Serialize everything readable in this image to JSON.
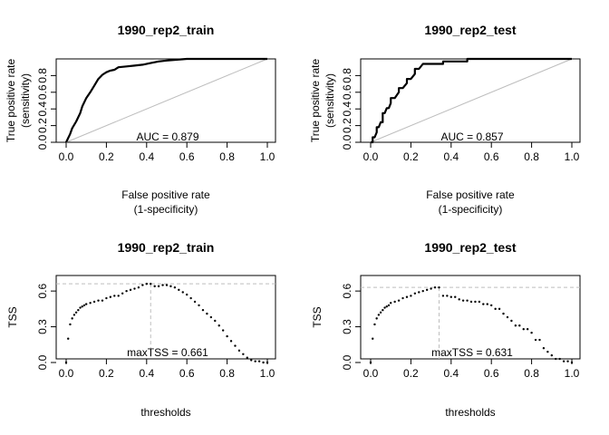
{
  "chart_data": [
    {
      "type": "line",
      "title": "1990_rep2_train",
      "xlabel": [
        "False positive rate",
        "(1-specificity)"
      ],
      "ylabel": [
        "True positive rate",
        "(sensitivity)"
      ],
      "xlim": [
        0,
        1
      ],
      "ylim": [
        0,
        1
      ],
      "x_ticks": [
        "0.0",
        "0.2",
        "0.4",
        "0.6",
        "0.8",
        "1.0"
      ],
      "y_ticks": [
        "0.0",
        "0.2",
        "0.4",
        "0.6",
        "0.8"
      ],
      "annotation": "AUC = 0.879",
      "reference_line": "diagonal",
      "series": [
        {
          "x": [
            0,
            0.01,
            0.02,
            0.03,
            0.05,
            0.07,
            0.08,
            0.1,
            0.12,
            0.14,
            0.16,
            0.18,
            0.2,
            0.22,
            0.24,
            0.26,
            0.3,
            0.34,
            0.38,
            0.42,
            0.46,
            0.5,
            0.55,
            0.6,
            0.7,
            0.8,
            0.9,
            1.0
          ],
          "y": [
            0,
            0.05,
            0.1,
            0.17,
            0.25,
            0.35,
            0.43,
            0.53,
            0.6,
            0.68,
            0.76,
            0.81,
            0.84,
            0.86,
            0.87,
            0.9,
            0.91,
            0.92,
            0.93,
            0.95,
            0.97,
            0.98,
            0.99,
            1.0,
            1.0,
            1.0,
            1.0,
            1.0
          ]
        }
      ]
    },
    {
      "type": "line",
      "title": "1990_rep2_test",
      "xlabel": [
        "False positive rate",
        "(1-specificity)"
      ],
      "ylabel": [
        "True positive rate",
        "(sensitivity)"
      ],
      "xlim": [
        0,
        1
      ],
      "ylim": [
        0,
        1
      ],
      "x_ticks": [
        "0.0",
        "0.2",
        "0.4",
        "0.6",
        "0.8",
        "1.0"
      ],
      "y_ticks": [
        "0.0",
        "0.2",
        "0.4",
        "0.6",
        "0.8"
      ],
      "annotation": "AUC = 0.857",
      "reference_line": "diagonal",
      "series": [
        {
          "x": [
            0,
            0.01,
            0.01,
            0.02,
            0.03,
            0.03,
            0.04,
            0.05,
            0.06,
            0.06,
            0.07,
            0.08,
            0.09,
            0.1,
            0.1,
            0.12,
            0.14,
            0.14,
            0.16,
            0.18,
            0.18,
            0.2,
            0.22,
            0.22,
            0.24,
            0.26,
            0.26,
            0.28,
            0.3,
            0.36,
            0.36,
            0.4,
            0.46,
            0.48,
            0.48,
            0.6,
            0.8,
            1.0
          ],
          "y": [
            0,
            0,
            0.06,
            0.06,
            0.12,
            0.18,
            0.18,
            0.24,
            0.24,
            0.35,
            0.35,
            0.41,
            0.41,
            0.47,
            0.53,
            0.53,
            0.6,
            0.65,
            0.65,
            0.71,
            0.76,
            0.76,
            0.82,
            0.88,
            0.88,
            0.94,
            0.94,
            0.94,
            0.94,
            0.94,
            0.97,
            0.97,
            0.97,
            0.97,
            1.0,
            1.0,
            1.0,
            1.0
          ]
        }
      ]
    },
    {
      "type": "scatter",
      "title": "1990_rep2_train",
      "xlabel": [
        "thresholds"
      ],
      "ylabel": [
        "TSS"
      ],
      "xlim": [
        0,
        1
      ],
      "ylim": [
        0,
        0.7
      ],
      "x_ticks": [
        "0.0",
        "0.2",
        "0.4",
        "0.6",
        "0.8",
        "1.0"
      ],
      "y_ticks": [
        "0.0",
        "0.3",
        "0.6"
      ],
      "annotation": "maxTSS = 0.661",
      "max_tss": 0.661,
      "best_threshold": 0.42,
      "series": [
        {
          "x": [
            0.0,
            0.01,
            0.02,
            0.03,
            0.04,
            0.05,
            0.06,
            0.07,
            0.08,
            0.09,
            0.1,
            0.12,
            0.14,
            0.16,
            0.18,
            0.2,
            0.22,
            0.24,
            0.26,
            0.28,
            0.3,
            0.32,
            0.34,
            0.36,
            0.38,
            0.4,
            0.42,
            0.44,
            0.46,
            0.48,
            0.5,
            0.52,
            0.54,
            0.56,
            0.58,
            0.6,
            0.62,
            0.64,
            0.66,
            0.68,
            0.7,
            0.72,
            0.74,
            0.76,
            0.78,
            0.8,
            0.82,
            0.84,
            0.86,
            0.88,
            0.9,
            0.92,
            0.94,
            0.96,
            0.98,
            1.0
          ],
          "y": [
            0.0,
            0.2,
            0.32,
            0.37,
            0.4,
            0.42,
            0.44,
            0.46,
            0.47,
            0.48,
            0.49,
            0.5,
            0.51,
            0.52,
            0.52,
            0.54,
            0.55,
            0.56,
            0.56,
            0.58,
            0.6,
            0.61,
            0.62,
            0.63,
            0.65,
            0.66,
            0.66,
            0.64,
            0.64,
            0.65,
            0.65,
            0.64,
            0.63,
            0.61,
            0.59,
            0.57,
            0.54,
            0.51,
            0.48,
            0.44,
            0.41,
            0.38,
            0.35,
            0.31,
            0.27,
            0.22,
            0.18,
            0.14,
            0.1,
            0.07,
            0.04,
            0.02,
            0.01,
            0.01,
            0.0,
            0.0
          ]
        }
      ]
    },
    {
      "type": "scatter",
      "title": "1990_rep2_test",
      "xlabel": [
        "thresholds"
      ],
      "ylabel": [
        "TSS"
      ],
      "xlim": [
        0,
        1
      ],
      "ylim": [
        0,
        0.7
      ],
      "x_ticks": [
        "0.0",
        "0.2",
        "0.4",
        "0.6",
        "0.8",
        "1.0"
      ],
      "y_ticks": [
        "0.0",
        "0.3",
        "0.6"
      ],
      "annotation": "maxTSS = 0.631",
      "max_tss": 0.631,
      "best_threshold": 0.34,
      "series": [
        {
          "x": [
            0.0,
            0.01,
            0.02,
            0.03,
            0.04,
            0.05,
            0.06,
            0.07,
            0.08,
            0.09,
            0.1,
            0.12,
            0.14,
            0.16,
            0.18,
            0.2,
            0.22,
            0.24,
            0.26,
            0.28,
            0.3,
            0.32,
            0.34,
            0.36,
            0.38,
            0.4,
            0.42,
            0.44,
            0.46,
            0.48,
            0.5,
            0.52,
            0.54,
            0.56,
            0.58,
            0.6,
            0.62,
            0.64,
            0.66,
            0.68,
            0.7,
            0.72,
            0.74,
            0.76,
            0.78,
            0.8,
            0.82,
            0.84,
            0.86,
            0.88,
            0.9,
            0.92,
            0.94,
            0.96,
            0.98,
            1.0
          ],
          "y": [
            0.0,
            0.2,
            0.32,
            0.37,
            0.4,
            0.42,
            0.44,
            0.46,
            0.47,
            0.48,
            0.5,
            0.51,
            0.52,
            0.54,
            0.55,
            0.56,
            0.58,
            0.59,
            0.6,
            0.61,
            0.62,
            0.63,
            0.63,
            0.56,
            0.56,
            0.55,
            0.55,
            0.53,
            0.52,
            0.52,
            0.51,
            0.51,
            0.51,
            0.49,
            0.49,
            0.48,
            0.45,
            0.45,
            0.41,
            0.38,
            0.35,
            0.31,
            0.31,
            0.28,
            0.28,
            0.25,
            0.19,
            0.19,
            0.12,
            0.09,
            0.06,
            0.03,
            0.03,
            0.01,
            0.01,
            0.0
          ]
        }
      ]
    }
  ]
}
